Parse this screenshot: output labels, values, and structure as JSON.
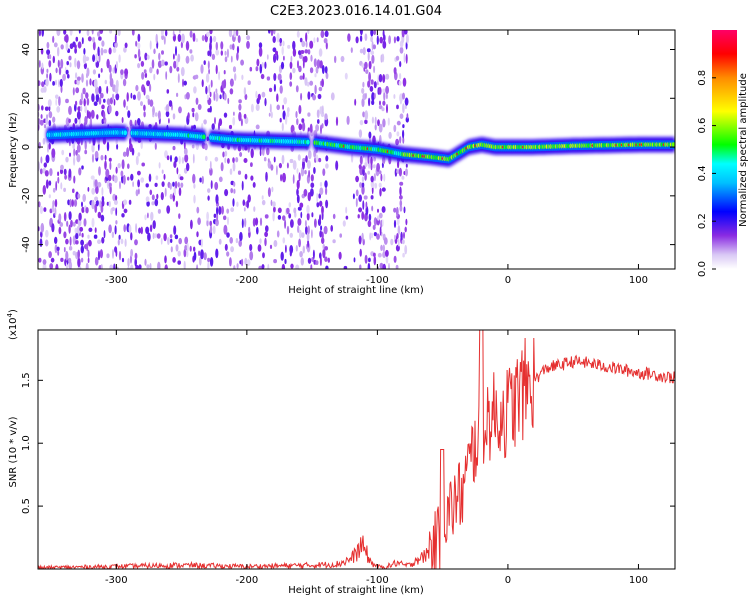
{
  "page": {
    "title": "C2E3.2023.016.14.01.G04"
  },
  "chart_data": [
    {
      "type": "heatmap",
      "xlabel": "Height of straight line (km)",
      "ylabel": "Frequency (Hz)",
      "xlim": [
        -360,
        128
      ],
      "ylim": [
        -50,
        48
      ],
      "xticks": [
        -300,
        -200,
        -100,
        0,
        100
      ],
      "yticks": [
        -40,
        -20,
        0,
        20,
        40
      ],
      "grid": false,
      "colorbar": {
        "label": "Normalized spectral amplitude",
        "range": [
          0,
          1
        ],
        "ticks": [
          "0.0",
          "0.2",
          "0.4",
          "0.6",
          "0.8"
        ],
        "colors": [
          "#ffffff",
          "#c8a8f0",
          "#8a2be2",
          "#0000ff",
          "#00ffff",
          "#00ff00",
          "#ffff00",
          "#ffa500",
          "#ff0000",
          "#ff0066"
        ]
      },
      "ridge": {
        "x": [
          -350,
          -300,
          -250,
          -210,
          -150,
          -120,
          -100,
          -80,
          -60,
          -45,
          -30,
          -20,
          -10,
          0,
          20,
          50,
          100,
          128
        ],
        "frequency": [
          5,
          6,
          5,
          3,
          2,
          0,
          -1,
          -3,
          -4,
          -5,
          0,
          1,
          0,
          0,
          0,
          0.5,
          1,
          1
        ]
      }
    },
    {
      "type": "line",
      "xlabel": "Height of straight line (km)",
      "ylabel": "SNR (10 * v/v)",
      "yscale_label": "(x10",
      "yscale_exp": "4",
      "yscale_close": ")",
      "xlim": [
        -360,
        128
      ],
      "ylim": [
        0,
        19000
      ],
      "xticks": [
        -300,
        -200,
        -100,
        0,
        100
      ],
      "yticks": [
        5000,
        10000,
        15000
      ],
      "yticklabels": [
        "0.5",
        "1.0",
        "1.5"
      ],
      "grid": false,
      "series": [
        {
          "color": "#e53030",
          "x": [
            -360,
            -300,
            -250,
            -200,
            -150,
            -130,
            -120,
            -115,
            -112,
            -108,
            -105,
            -100,
            -95,
            -90,
            -85,
            -80,
            -75,
            -70,
            -65,
            -60,
            -55,
            -50,
            -45,
            -40,
            -35,
            -30,
            -25,
            -20,
            -15,
            -10,
            -5,
            0,
            10,
            20,
            30,
            40,
            50,
            60,
            70,
            80,
            90,
            100,
            110,
            120,
            128
          ],
          "y": [
            100,
            200,
            300,
            200,
            300,
            400,
            800,
            1400,
            1900,
            1200,
            500,
            200,
            100,
            300,
            500,
            300,
            300,
            800,
            900,
            1500,
            2000,
            3200,
            4500,
            5500,
            6000,
            8000,
            10000,
            11500,
            12000,
            12200,
            12300,
            12500,
            14000,
            15000,
            16000,
            16200,
            16500,
            16400,
            16200,
            16000,
            15800,
            15600,
            15500,
            15300,
            15200
          ]
        }
      ]
    }
  ]
}
